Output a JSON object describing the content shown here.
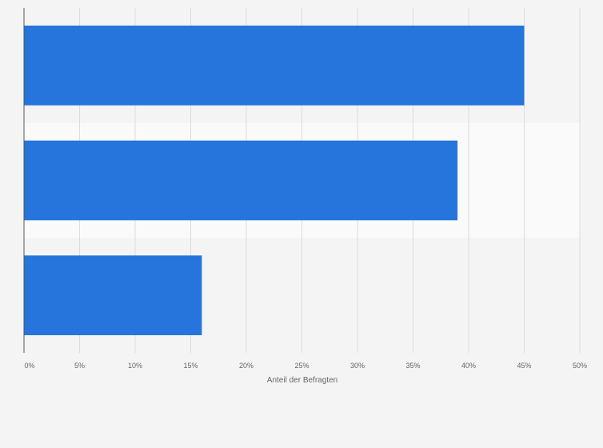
{
  "chart_data": {
    "type": "bar",
    "orientation": "horizontal",
    "categories": [
      "",
      "",
      ""
    ],
    "values": [
      45,
      39,
      16
    ],
    "xlabel": "Anteil der Befragten",
    "ylabel": "",
    "xlim": [
      0,
      50
    ],
    "x_ticks": [
      0,
      5,
      10,
      15,
      20,
      25,
      30,
      35,
      40,
      45,
      50
    ],
    "x_tick_labels": [
      "0%",
      "5%",
      "10%",
      "15%",
      "20%",
      "25%",
      "30%",
      "35%",
      "40%",
      "45%",
      "50%"
    ],
    "grid": true,
    "legend": "none",
    "colors": {
      "bar": "#2575dc",
      "background": "#f4f4f4",
      "band": "#fafafa",
      "grid": "#dcdcdc",
      "axis": "#555555",
      "text": "#666666"
    }
  }
}
